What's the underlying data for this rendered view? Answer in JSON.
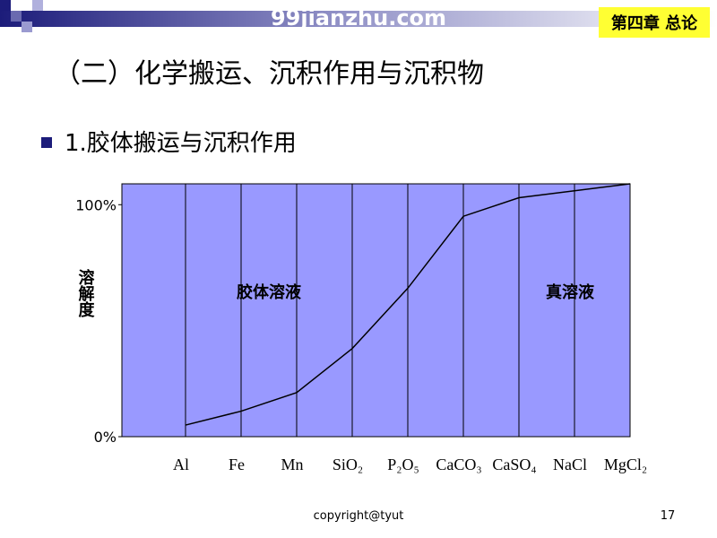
{
  "header": {
    "watermark": "99jianzhu.com",
    "chapter": "第四章 总论"
  },
  "title": "（二）化学搬运、沉积作用与沉积物",
  "bullet": "1.胶体搬运与沉积作用",
  "chart_data": {
    "type": "line",
    "y_label": "溶解度",
    "categories": [
      "Al",
      "Fe",
      "Mn",
      "SiO₂",
      "P₂O₅",
      "CaCO₃",
      "CaSO₄",
      "NaCl",
      "MgCl₂"
    ],
    "values": [
      5,
      11,
      19,
      38,
      64,
      95,
      103,
      106,
      109
    ],
    "color": "#000000",
    "background": "#9999ff",
    "ylim": [
      0,
      109
    ],
    "yticks": [
      {
        "value": 0,
        "label": "0%"
      },
      {
        "value": 100,
        "label": "100%"
      }
    ],
    "annotations": [
      "胶体溶液",
      "真溶液"
    ]
  },
  "footer": {
    "copyright": "copyright@tyut",
    "page": "17"
  }
}
